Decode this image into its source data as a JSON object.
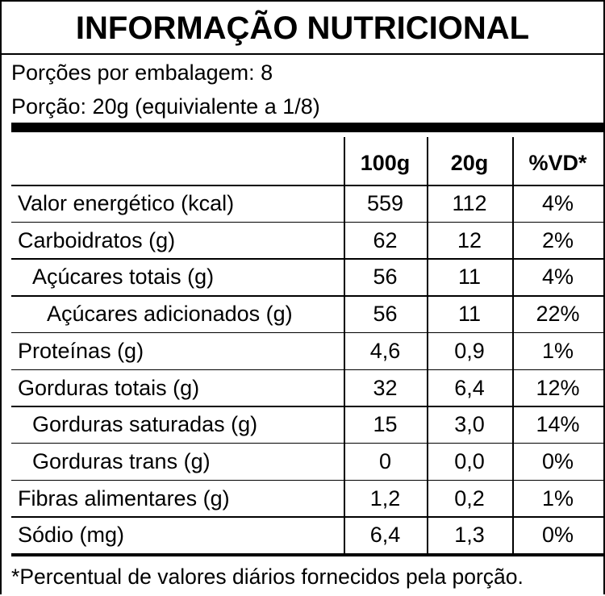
{
  "header": {
    "title": "INFORMAÇÃO NUTRICIONAL",
    "servings": "Porções por embalagem: 8",
    "portion": "Porção: 20g (equivialente a 1/8)"
  },
  "table": {
    "columns": [
      "100g",
      "20g",
      "%VD*"
    ],
    "rows": [
      [
        "Valor energético (kcal)",
        "559",
        "112",
        "4%"
      ],
      [
        "Carboidratos (g)",
        "62",
        "12",
        "2%"
      ],
      [
        "Açúcares totais (g)",
        "56",
        "11",
        "4%"
      ],
      [
        "Açúcares adicionados (g)",
        "56",
        "11",
        "22%"
      ],
      [
        "Proteínas (g)",
        "4,6",
        "0,9",
        "1%"
      ],
      [
        "Gorduras totais (g)",
        "32",
        "6,4",
        "12%"
      ],
      [
        "Gorduras saturadas (g)",
        "15",
        "3,0",
        "14%"
      ],
      [
        "Gorduras trans (g)",
        "0",
        "0,0",
        "0%"
      ],
      [
        "Fibras alimentares (g)",
        "1,2",
        "0,2",
        "1%"
      ],
      [
        "Sódio (mg)",
        "6,4",
        "1,3",
        "0%"
      ]
    ]
  },
  "footnote": "*Percentual de valores diários fornecidos pela porção."
}
